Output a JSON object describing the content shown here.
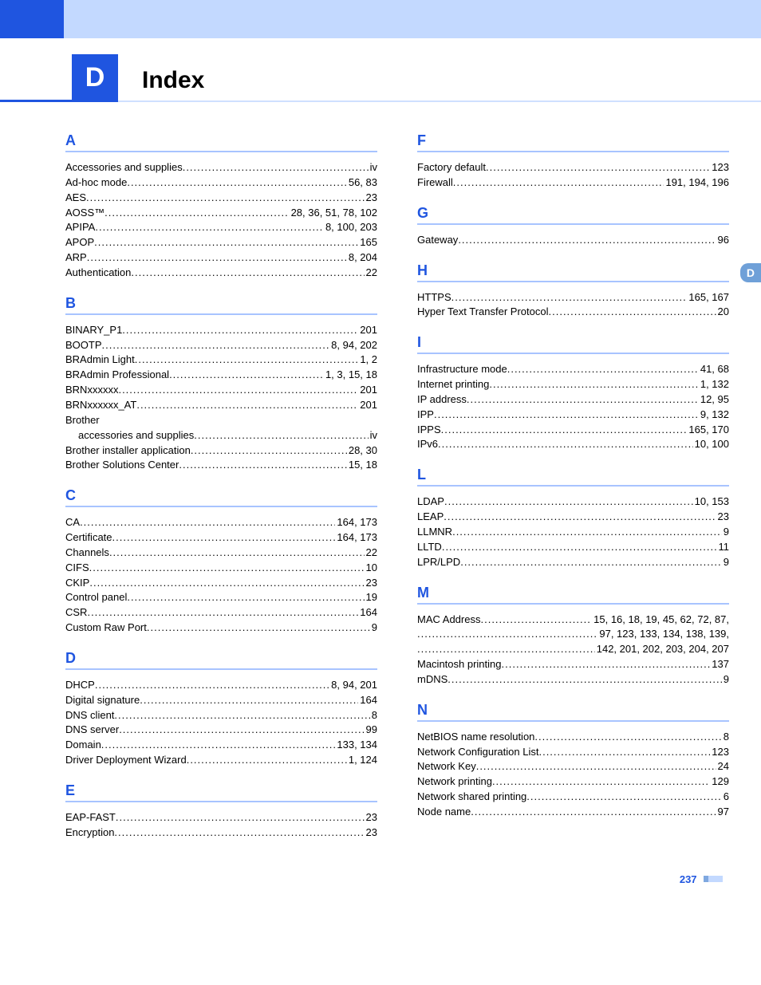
{
  "chapter": {
    "letter": "D",
    "title": "Index"
  },
  "sideTab": "D",
  "pageNumber": "237",
  "left": {
    "A": [
      {
        "label": "Accessories and supplies",
        "pages": "iv"
      },
      {
        "label": "Ad-hoc mode",
        "pages": "56, 83"
      },
      {
        "label": "AES",
        "pages": "23"
      },
      {
        "label": "AOSS™",
        "pages": "28, 36, 51, 78, 102"
      },
      {
        "label": "APIPA",
        "pages": " 8, 100, 203"
      },
      {
        "label": "APOP",
        "pages": "165"
      },
      {
        "label": "ARP",
        "pages": "8, 204"
      },
      {
        "label": "Authentication",
        "pages": "22"
      }
    ],
    "B": [
      {
        "label": "BINARY_P1",
        "pages": "201"
      },
      {
        "label": "BOOTP",
        "pages": " 8, 94, 202"
      },
      {
        "label": "BRAdmin Light",
        "pages": "1, 2"
      },
      {
        "label": "BRAdmin Professional",
        "pages": "1, 3, 15, 18"
      },
      {
        "label": "BRNxxxxxx",
        "pages": "201"
      },
      {
        "label": "BRNxxxxxx_AT",
        "pages": "201"
      },
      {
        "label": "Brother",
        "plain": true
      },
      {
        "label": "accessories and supplies",
        "pages": "iv",
        "sub": true
      },
      {
        "label": "Brother installer application",
        "pages": "28, 30"
      },
      {
        "label": "Brother Solutions Center",
        "pages": "15, 18"
      }
    ],
    "C": [
      {
        "label": "CA",
        "pages": "164, 173"
      },
      {
        "label": "Certificate",
        "pages": "164, 173"
      },
      {
        "label": "Channels",
        "pages": "22"
      },
      {
        "label": "CIFS",
        "pages": "10"
      },
      {
        "label": "CKIP",
        "pages": "23"
      },
      {
        "label": "Control panel",
        "pages": "19"
      },
      {
        "label": "CSR",
        "pages": " 164"
      },
      {
        "label": "Custom Raw Port",
        "pages": "9"
      }
    ],
    "D": [
      {
        "label": "DHCP",
        "pages": " 8, 94, 201"
      },
      {
        "label": "Digital signature",
        "pages": " 164"
      },
      {
        "label": "DNS client",
        "pages": " 8"
      },
      {
        "label": "DNS server",
        "pages": "99"
      },
      {
        "label": "Domain",
        "pages": "133, 134"
      },
      {
        "label": "Driver Deployment Wizard",
        "pages": "1, 124"
      }
    ],
    "E": [
      {
        "label": "EAP-FAST",
        "pages": " 23"
      },
      {
        "label": "Encryption",
        "pages": "23"
      }
    ]
  },
  "right": {
    "F": [
      {
        "label": "Factory default",
        "pages": " 123"
      },
      {
        "label": "Firewall",
        "pages": " 191, 194, 196"
      }
    ],
    "G": [
      {
        "label": "Gateway",
        "pages": " 96"
      }
    ],
    "H": [
      {
        "label": "HTTPS",
        "pages": "165, 167"
      },
      {
        "label": "Hyper Text Transfer Protocol",
        "pages": " 20"
      }
    ],
    "I": [
      {
        "label": "Infrastructure mode",
        "pages": "41, 68"
      },
      {
        "label": "Internet printing",
        "pages": "1, 132"
      },
      {
        "label": "IP address",
        "pages": "12, 95"
      },
      {
        "label": "IPP",
        "pages": "9, 132"
      },
      {
        "label": "IPPS",
        "pages": "165, 170"
      },
      {
        "label": "IPv6",
        "pages": "10, 100"
      }
    ],
    "L": [
      {
        "label": "LDAP",
        "pages": "10, 153"
      },
      {
        "label": "LEAP",
        "pages": "23"
      },
      {
        "label": "LLMNR",
        "pages": " 9"
      },
      {
        "label": "LLTD",
        "pages": " 11"
      },
      {
        "label": "LPR/LPD",
        "pages": " 9"
      }
    ],
    "M": {
      "mac": {
        "label": "MAC Address",
        "line1": " 15, 16, 18, 19, 45, 62, 72, 87,",
        "line2": "97, 123, 133, 134, 138, 139,",
        "line3": " 142, 201, 202, 203, 204, 207"
      },
      "rest": [
        {
          "label": "Macintosh printing",
          "pages": " 137"
        },
        {
          "label": "mDNS",
          "pages": " 9"
        }
      ]
    },
    "N": [
      {
        "label": "NetBIOS name resolution",
        "pages": " 8"
      },
      {
        "label": "Network Configuration List",
        "pages": " 123"
      },
      {
        "label": "Network Key",
        "pages": "24"
      },
      {
        "label": "Network printing",
        "pages": "129"
      },
      {
        "label": "Network shared printing",
        "pages": " 6"
      },
      {
        "label": "Node name",
        "pages": " 97"
      }
    ]
  }
}
